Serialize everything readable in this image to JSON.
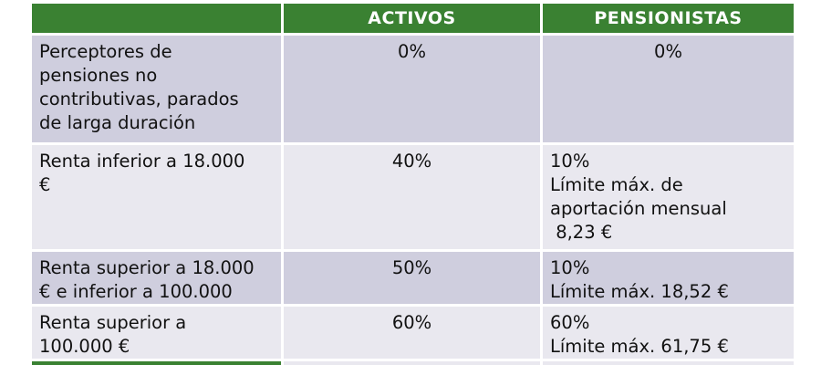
{
  "chart_data": {
    "type": "table",
    "columns": [
      "",
      "ACTIVOS",
      "PENSIONISTAS"
    ],
    "rows": [
      [
        "Perceptores de\npensiones no\ncontributivas, parados\nde larga duración",
        "0%",
        "0%"
      ],
      [
        "Renta inferior a 18.000\n€",
        "40%",
        "10%\nLímite máx. de\naportación mensual\n 8,23 €"
      ],
      [
        "Renta superior a 18.000\n€ e inferior a 100.000",
        "50%",
        "10%\nLímite máx. 18,52 €"
      ],
      [
        "Renta superior a\n100.000 €",
        "60%",
        "60%\nLímite máx. 61,75 €"
      ]
    ],
    "layout": {
      "row_striping": [
        "dark",
        "light",
        "dark",
        "light"
      ],
      "gridlines": "white-gutters",
      "clipped_next_row_color": "green"
    }
  },
  "colors": {
    "header_green": "#3a8132",
    "row_dark": "#cfcede",
    "row_light": "#e9e8ef",
    "header_text": "#ffffff",
    "body_text": "#111111",
    "background": "#ffffff"
  }
}
